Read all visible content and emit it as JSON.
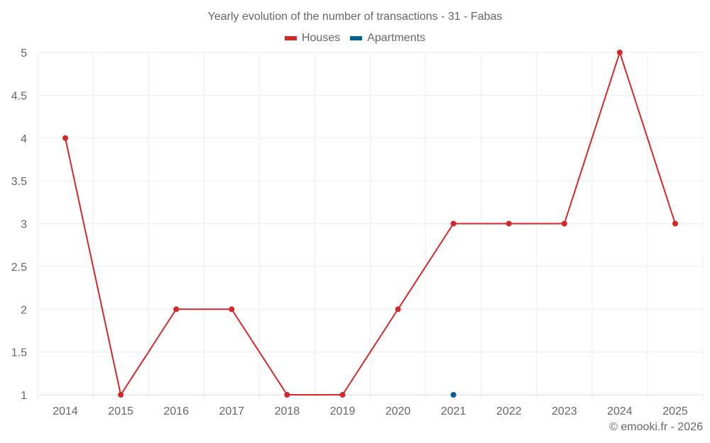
{
  "chart_data": {
    "type": "line",
    "title": "Yearly evolution of the number of transactions - 31 - Fabas",
    "xlabel": "",
    "ylabel": "",
    "categories": [
      "2014",
      "2015",
      "2016",
      "2017",
      "2018",
      "2019",
      "2020",
      "2021",
      "2022",
      "2023",
      "2024",
      "2025"
    ],
    "series": [
      {
        "name": "Houses",
        "color": "#d62728",
        "values": [
          4,
          1,
          2,
          2,
          1,
          1,
          2,
          3,
          3,
          3,
          5,
          3
        ]
      },
      {
        "name": "Apartments",
        "color": "#00609c",
        "values": [
          null,
          null,
          null,
          null,
          null,
          null,
          null,
          1,
          null,
          null,
          null,
          null
        ]
      }
    ],
    "ylim": [
      1,
      5
    ],
    "yticks": [
      "1",
      "1.5",
      "2",
      "2.5",
      "3",
      "3.5",
      "4",
      "4.5",
      "5"
    ],
    "grid": true,
    "legend_position": "top"
  },
  "legend": [
    {
      "label": "Houses",
      "color": "#d62728"
    },
    {
      "label": "Apartments",
      "color": "#00609c"
    }
  ],
  "credit": "© emooki.fr - 2026"
}
